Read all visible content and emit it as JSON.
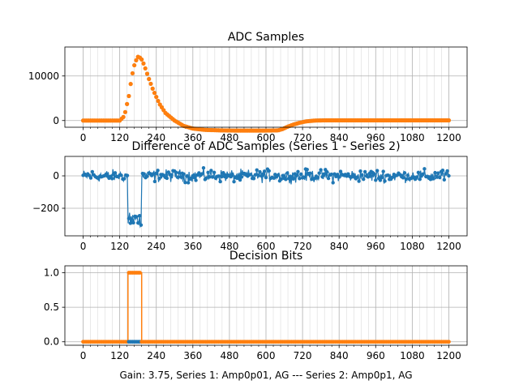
{
  "figure": {
    "caption": "Gain: 3.75, Series 1: Amp0p01, AG --- Series 2: Amp0p1, AG",
    "colors": {
      "series1": "#1f77b4",
      "series2": "#ff7f0e",
      "grid": "#b0b0b0",
      "axis": "#000000"
    }
  },
  "chart_data": [
    {
      "type": "scatter",
      "title": "ADC Samples",
      "xlabel": "",
      "ylabel": "",
      "xlim": [
        -60,
        1260
      ],
      "ylim": [
        -1500,
        16500
      ],
      "x_ticks": [
        0,
        120,
        240,
        360,
        480,
        600,
        720,
        840,
        960,
        1080,
        1200
      ],
      "x_tick_labels": [
        "0",
        "120",
        "240",
        "360",
        "480",
        "600",
        "720",
        "840",
        "960",
        "1080",
        "1200"
      ],
      "y_ticks": [
        0,
        10000
      ],
      "y_tick_labels": [
        "0",
        "10000"
      ],
      "grid": true,
      "series": [
        {
          "name": "Series 1",
          "color": "#1f77b4",
          "x": [
            0,
            100,
            120,
            135,
            150,
            160,
            170,
            180,
            190,
            200,
            215,
            230,
            250,
            270,
            300,
            330,
            360,
            400,
            450,
            500,
            550,
            600,
            640,
            655,
            670,
            690,
            710,
            730,
            760,
            800,
            850,
            900,
            1000,
            1100,
            1200
          ],
          "y": [
            0,
            0,
            0,
            1000,
            5500,
            10000,
            13000,
            14300,
            14000,
            12500,
            9500,
            6800,
            3800,
            1700,
            0,
            -1200,
            -1800,
            -2100,
            -2200,
            -2250,
            -2250,
            -2250,
            -2200,
            -1900,
            -1400,
            -900,
            -500,
            -200,
            0,
            50,
            50,
            50,
            50,
            50,
            50
          ]
        },
        {
          "name": "Series 2",
          "color": "#ff7f0e",
          "x": [
            0,
            100,
            120,
            135,
            150,
            160,
            170,
            180,
            190,
            200,
            215,
            230,
            250,
            270,
            300,
            330,
            360,
            400,
            450,
            500,
            550,
            600,
            640,
            655,
            670,
            690,
            710,
            730,
            760,
            800,
            850,
            900,
            1000,
            1100,
            1200
          ],
          "y": [
            0,
            0,
            0,
            1000,
            5500,
            10000,
            13000,
            14300,
            14000,
            12500,
            9500,
            6800,
            3800,
            1700,
            0,
            -1200,
            -1800,
            -2100,
            -2200,
            -2250,
            -2250,
            -2250,
            -2200,
            -1900,
            -1400,
            -900,
            -500,
            -200,
            0,
            50,
            50,
            50,
            50,
            50,
            50
          ]
        }
      ]
    },
    {
      "type": "scatter",
      "title": "Difference of ADC Samples (Series 1 - Series 2)",
      "xlabel": "",
      "ylabel": "",
      "xlim": [
        -60,
        1260
      ],
      "ylim": [
        -370,
        120
      ],
      "x_ticks": [
        0,
        120,
        240,
        360,
        480,
        600,
        720,
        840,
        960,
        1080,
        1200
      ],
      "x_tick_labels": [
        "0",
        "120",
        "240",
        "360",
        "480",
        "600",
        "720",
        "840",
        "960",
        "1080",
        "1200"
      ],
      "y_ticks": [
        -200,
        0
      ],
      "y_tick_labels": [
        "−200",
        "0"
      ],
      "grid": true,
      "series": [
        {
          "name": "Series 1 - Series 2",
          "color": "#1f77b4",
          "baseline_x": [
            0,
            147,
            191,
            1200
          ],
          "baseline_y": [
            0,
            0,
            0,
            0
          ],
          "baseline_noise": 55,
          "dip_x": [
            147,
            191
          ],
          "dip_y": [
            -270,
            -270
          ],
          "dip_noise": 45,
          "min": -350,
          "max": 110
        }
      ]
    },
    {
      "type": "line",
      "title": "Decision Bits",
      "xlabel": "Gain: 3.75, Series 1: Amp0p01, AG --- Series 2: Amp0p1, AG",
      "ylabel": "",
      "xlim": [
        -60,
        1260
      ],
      "ylim": [
        -0.05,
        1.1
      ],
      "x_ticks": [
        0,
        120,
        240,
        360,
        480,
        600,
        720,
        840,
        960,
        1080,
        1200
      ],
      "x_tick_labels": [
        "0",
        "120",
        "240",
        "360",
        "480",
        "600",
        "720",
        "840",
        "960",
        "1080",
        "1200"
      ],
      "y_ticks": [
        0,
        0.5,
        1
      ],
      "y_tick_labels": [
        "0.0",
        "0.5",
        "1.0"
      ],
      "grid": true,
      "series": [
        {
          "name": "Series 1",
          "color": "#1f77b4",
          "x": [
            0,
            1200
          ],
          "y": [
            0,
            0
          ]
        },
        {
          "name": "Series 2",
          "color": "#ff7f0e",
          "x": [
            0,
            147,
            147,
            192,
            192,
            1200
          ],
          "y": [
            0,
            0,
            1,
            1,
            0,
            0
          ]
        }
      ]
    }
  ]
}
